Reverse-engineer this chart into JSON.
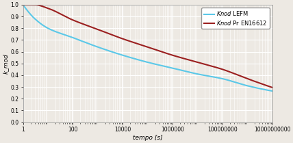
{
  "xlabel": "tempo [s]",
  "ylabel": "k_mod",
  "xmin": 1,
  "xmax": 10000000000,
  "ymin": 0.0,
  "ymax": 1.0,
  "legend": [
    {
      "label": "$\\it{Knod}$ LEFM",
      "color": "#5bc8e8"
    },
    {
      "label": "$\\it{Knod}$ Pr EN16612",
      "color": "#9b2020"
    }
  ],
  "background_color": "#ede9e3",
  "grid_color": "#ffffff",
  "line_width": 1.5,
  "lefm_x_points": [
    1,
    3,
    10,
    100,
    1000,
    10000,
    100000,
    1000000,
    10000000,
    100000000,
    1000000000,
    10000000000
  ],
  "lefm_y_points": [
    1.0,
    0.88,
    0.8,
    0.72,
    0.64,
    0.57,
    0.51,
    0.46,
    0.41,
    0.37,
    0.31,
    0.265
  ],
  "en_x_points": [
    1,
    3,
    10,
    100,
    1000,
    10000,
    100000,
    1000000,
    10000000,
    100000000,
    1000000000,
    10000000000
  ],
  "en_y_points": [
    1.0,
    1.0,
    0.97,
    0.87,
    0.79,
    0.71,
    0.64,
    0.57,
    0.51,
    0.45,
    0.37,
    0.295
  ],
  "x_ticks": [
    1,
    100,
    10000,
    1000000,
    100000000,
    10000000000
  ],
  "x_tick_labels": [
    "1",
    "100",
    "10000",
    "1000000",
    "100000000",
    "10000000000"
  ],
  "y_ticks": [
    0.0,
    0.1,
    0.2,
    0.3,
    0.4,
    0.5,
    0.6,
    0.7,
    0.8,
    0.9,
    1.0
  ]
}
